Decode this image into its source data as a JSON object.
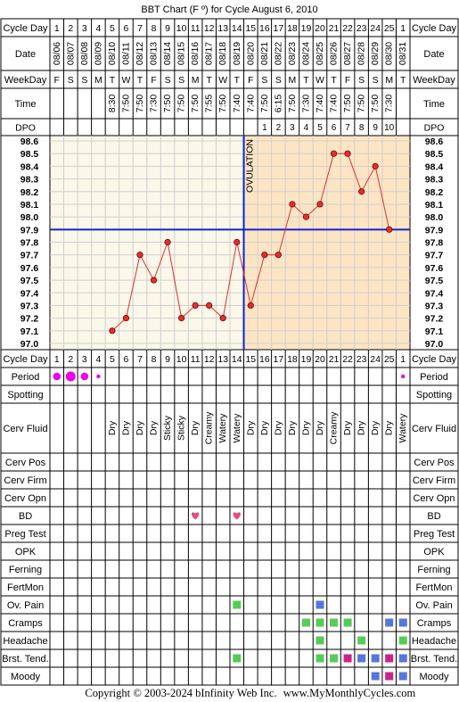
{
  "title": "BBT Chart (F º) for Cycle August 6, 2010",
  "footer": {
    "copyright": "Copyright © 2003-2024 bInfinity Web Inc.",
    "site": "www.MyMonthlyCycles.com"
  },
  "row_labels": {
    "cycle_day": "Cycle Day",
    "date": "Date",
    "weekday": "WeekDay",
    "time": "Time",
    "dpo": "DPO",
    "period": "Period",
    "spotting": "Spotting",
    "cerv_fluid": "Cerv Fluid",
    "cerv_pos": "Cerv Pos",
    "cerv_firm": "Cerv Firm",
    "cerv_opn": "Cerv Opn",
    "bd": "BD",
    "preg_test": "Preg Test",
    "opk": "OPK",
    "ferning": "Ferning",
    "fertmon": "FertMon",
    "ov_pain": "Ov. Pain",
    "cramps": "Cramps",
    "headache": "Headache",
    "brst_tend": "Brst. Tend.",
    "moody": "Moody"
  },
  "ovulation_label": "OVULATION",
  "colors": {
    "grid_bg_pre": "#fbf8ea",
    "grid_bg_post": "#fde5c3",
    "temp_line": "#e03030",
    "temp_marker": "#e03030",
    "coverline": "#0b24d6",
    "period": "#ee00ee",
    "bd_heart": "#e0507a",
    "symptom_green": "#55cc55",
    "symptom_blue": "#5577dd",
    "symptom_magenta": "#cc2288"
  },
  "chart_data": {
    "type": "line",
    "cycle_days": [
      "1",
      "2",
      "3",
      "4",
      "5",
      "6",
      "7",
      "8",
      "9",
      "10",
      "11",
      "12",
      "13",
      "14",
      "15",
      "16",
      "17",
      "18",
      "19",
      "20",
      "21",
      "22",
      "23",
      "24",
      "25",
      "1"
    ],
    "dates": [
      "08/06",
      "08/07",
      "08/08",
      "08/09",
      "08/10",
      "08/11",
      "08/12",
      "08/13",
      "08/14",
      "08/15",
      "08/16",
      "08/17",
      "08/18",
      "08/19",
      "08/20",
      "08/21",
      "08/22",
      "08/23",
      "08/24",
      "08/25",
      "08/26",
      "08/27",
      "08/28",
      "08/29",
      "08/30",
      "08/31"
    ],
    "weekdays": [
      "F",
      "S",
      "S",
      "M",
      "T",
      "W",
      "T",
      "F",
      "S",
      "S",
      "M",
      "T",
      "W",
      "T",
      "F",
      "S",
      "S",
      "M",
      "T",
      "W",
      "T",
      "F",
      "S",
      "S",
      "M",
      "T"
    ],
    "times": [
      "",
      "",
      "",
      "",
      "8:30",
      "7:50",
      "7:50",
      "7:30",
      "7:50",
      "7:50",
      "7:50",
      "7:55",
      "7:50",
      "7:40",
      "7:40",
      "7:50",
      "6:15",
      "7:50",
      "7:30",
      "7:40",
      "7:40",
      "7:50",
      "7:50",
      "7:50",
      "7:30",
      ""
    ],
    "dpo": [
      "",
      "",
      "",
      "",
      "",
      "",
      "",
      "",
      "",
      "",
      "",
      "",
      "",
      "",
      "",
      "1",
      "2",
      "3",
      "4",
      "5",
      "6",
      "7",
      "8",
      "9",
      "10",
      ""
    ],
    "y_ticks": [
      "98.6",
      "98.5",
      "98.4",
      "98.3",
      "98.2",
      "98.1",
      "98.0",
      "97.9",
      "97.8",
      "97.7",
      "97.6",
      "97.5",
      "97.4",
      "97.3",
      "97.2",
      "97.1",
      "97.0"
    ],
    "ylim": [
      97.0,
      98.6
    ],
    "temperatures": [
      null,
      null,
      null,
      null,
      97.1,
      97.2,
      97.7,
      97.5,
      97.8,
      97.2,
      97.3,
      97.3,
      97.2,
      97.8,
      97.3,
      97.7,
      97.7,
      98.1,
      98.0,
      98.1,
      98.5,
      98.5,
      98.2,
      98.4,
      97.9,
      null
    ],
    "coverline": 97.9,
    "ovulation_after_day_index": 13,
    "period": [
      "large",
      "large",
      "large",
      "small",
      "",
      "",
      "",
      "",
      "",
      "",
      "",
      "",
      "",
      "",
      "",
      "",
      "",
      "",
      "",
      "",
      "",
      "",
      "",
      "",
      "",
      "small"
    ],
    "cerv_fluid": [
      "",
      "",
      "",
      "",
      "Dry",
      "Dry",
      "Dry",
      "Dry",
      "Sticky",
      "Sticky",
      "Dry",
      "Creamy",
      "Watery",
      "Watery",
      "Dry",
      "Dry",
      "Dry",
      "Dry",
      "Dry",
      "Dry",
      "Creamy",
      "Dry",
      "Dry",
      "Dry",
      "Dry",
      "Watery"
    ],
    "bd": [
      false,
      false,
      false,
      false,
      false,
      false,
      false,
      false,
      false,
      false,
      true,
      false,
      false,
      true,
      false,
      false,
      false,
      false,
      false,
      false,
      false,
      false,
      false,
      false,
      false,
      false
    ],
    "ov_pain": [
      "",
      "",
      "",
      "",
      "",
      "",
      "",
      "",
      "",
      "",
      "",
      "",
      "",
      "green",
      "",
      "",
      "",
      "",
      "",
      "blue",
      "",
      "",
      "",
      "",
      "",
      ""
    ],
    "cramps": [
      "",
      "",
      "",
      "",
      "",
      "",
      "",
      "",
      "",
      "",
      "",
      "",
      "",
      "",
      "",
      "",
      "",
      "",
      "green",
      "green",
      "green",
      "green",
      "",
      "",
      "blue",
      "blue"
    ],
    "headache": [
      "",
      "",
      "",
      "",
      "",
      "",
      "",
      "",
      "",
      "",
      "",
      "",
      "",
      "",
      "",
      "",
      "",
      "",
      "",
      "green",
      "",
      "",
      "green",
      "",
      "",
      "green"
    ],
    "brst_tend": [
      "",
      "",
      "",
      "",
      "",
      "",
      "",
      "",
      "",
      "",
      "",
      "",
      "",
      "green",
      "",
      "",
      "",
      "",
      "",
      "green",
      "green",
      "magenta",
      "blue",
      "blue",
      "magenta",
      "blue"
    ],
    "moody": [
      "",
      "",
      "",
      "",
      "",
      "",
      "",
      "",
      "",
      "",
      "",
      "",
      "",
      "",
      "",
      "",
      "",
      "",
      "",
      "",
      "",
      "",
      "",
      "blue",
      "magenta",
      "blue"
    ]
  }
}
